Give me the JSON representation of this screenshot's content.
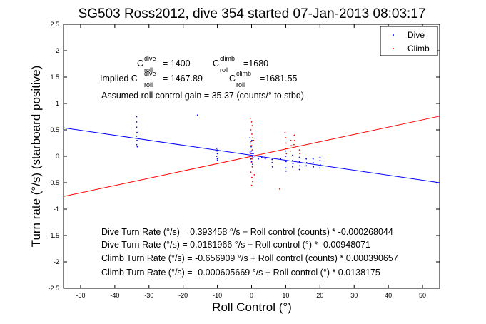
{
  "chart_data": {
    "type": "scatter",
    "title": "SG503 Ross2012, dive 354 started 07-Jan-2013 08:03:17",
    "xlabel": "Roll Control (°)",
    "ylabel": "Turn rate (°/s) (starboard positive)",
    "xlim": [
      -55,
      55
    ],
    "ylim": [
      -2.5,
      2.5
    ],
    "xticks": [
      -50,
      -40,
      -30,
      -20,
      -10,
      0,
      10,
      20,
      30,
      40,
      50
    ],
    "yticks": [
      -2.5,
      -2,
      -1.5,
      -1,
      -0.5,
      0,
      0.5,
      1,
      1.5,
      2,
      2.5
    ],
    "ytick_labels": [
      "-2.5",
      "-2",
      "-1.5",
      "-1",
      "-0.5",
      "0",
      "0.5",
      "1",
      "1.5",
      "2",
      "2.5"
    ],
    "grid": false,
    "legend_position": "top-right",
    "series": [
      {
        "name": "Dive",
        "color": "#0000ff",
        "marker": "dot",
        "points": [
          [
            -33.6,
            0.75
          ],
          [
            -33.6,
            0.65
          ],
          [
            -33.6,
            0.55
          ],
          [
            -33.5,
            0.45
          ],
          [
            -33.6,
            0.38
          ],
          [
            -33.5,
            0.3
          ],
          [
            -33.6,
            0.22
          ],
          [
            -33.4,
            0.18
          ],
          [
            -15.8,
            0.78
          ],
          [
            -10.2,
            0.15
          ],
          [
            -10.1,
            0.1
          ],
          [
            -10.0,
            0.05
          ],
          [
            -10.2,
            0.0
          ],
          [
            -10.0,
            -0.05
          ],
          [
            -10.1,
            0.12
          ],
          [
            -10.0,
            -0.08
          ],
          [
            -0.5,
            0.35
          ],
          [
            -0.3,
            0.25
          ],
          [
            -0.1,
            0.18
          ],
          [
            0.0,
            0.1
          ],
          [
            0.1,
            0.05
          ],
          [
            0.2,
            0.0
          ],
          [
            -0.2,
            -0.05
          ],
          [
            0.0,
            -0.1
          ],
          [
            0.3,
            -0.15
          ],
          [
            -0.1,
            0.2
          ],
          [
            0.1,
            0.3
          ],
          [
            -0.4,
            0.08
          ],
          [
            0.4,
            -0.02
          ],
          [
            0.5,
            0.05
          ],
          [
            1.0,
            0.0
          ],
          [
            2.0,
            -0.05
          ],
          [
            3.0,
            -0.02
          ],
          [
            4.0,
            -0.05
          ],
          [
            6.0,
            -0.12
          ],
          [
            6.1,
            -0.2
          ],
          [
            6.0,
            -0.06
          ],
          [
            8.5,
            -0.05
          ],
          [
            10.0,
            0.1
          ],
          [
            10.0,
            0.0
          ],
          [
            10.1,
            -0.1
          ],
          [
            10.0,
            -0.22
          ],
          [
            10.1,
            -0.28
          ],
          [
            12.0,
            0.02
          ],
          [
            12.0,
            -0.08
          ],
          [
            12.1,
            -0.14
          ],
          [
            12.0,
            -0.2
          ],
          [
            14.0,
            -0.02
          ],
          [
            14.0,
            -0.1
          ],
          [
            14.1,
            -0.18
          ],
          [
            14.0,
            -0.25
          ],
          [
            16.0,
            -0.05
          ],
          [
            16.1,
            -0.12
          ],
          [
            16.0,
            -0.18
          ],
          [
            18.0,
            -0.05
          ],
          [
            18.0,
            -0.12
          ],
          [
            18.1,
            -0.2
          ],
          [
            20.0,
            -0.02
          ],
          [
            20.0,
            -0.08
          ],
          [
            20.1,
            -0.16
          ],
          [
            20.0,
            -0.22
          ]
        ]
      },
      {
        "name": "Climb",
        "color": "#ff0000",
        "marker": "dot",
        "points": [
          [
            -0.3,
            0.72
          ],
          [
            0.0,
            0.65
          ],
          [
            0.2,
            0.58
          ],
          [
            -0.2,
            0.5
          ],
          [
            0.1,
            0.42
          ],
          [
            0.3,
            0.35
          ],
          [
            -0.1,
            0.28
          ],
          [
            0.0,
            0.2
          ],
          [
            0.2,
            0.12
          ],
          [
            -0.3,
            0.05
          ],
          [
            0.1,
            -0.05
          ],
          [
            0.0,
            -0.12
          ],
          [
            0.2,
            -0.2
          ],
          [
            -0.2,
            -0.3
          ],
          [
            0.1,
            -0.4
          ],
          [
            0.3,
            -0.48
          ],
          [
            0.0,
            -0.55
          ],
          [
            0.6,
            0.3
          ],
          [
            0.8,
            -0.35
          ],
          [
            8.2,
            -0.62
          ],
          [
            9.8,
            0.45
          ],
          [
            10.0,
            0.35
          ],
          [
            10.1,
            0.25
          ],
          [
            10.0,
            0.15
          ],
          [
            10.2,
            0.05
          ],
          [
            11.5,
            0.3
          ],
          [
            11.6,
            0.2
          ],
          [
            11.4,
            0.1
          ],
          [
            12.5,
            0.4
          ],
          [
            12.6,
            0.3
          ],
          [
            12.4,
            0.22
          ],
          [
            14.0,
            0.12
          ],
          [
            14.1,
            0.05
          ]
        ]
      }
    ],
    "fit_lines": [
      {
        "series": "Dive",
        "color": "#0000ff",
        "x": [
          -55,
          55
        ],
        "y": [
          0.5392,
          -0.4997
        ]
      },
      {
        "series": "Climb",
        "color": "#ff0000",
        "x": [
          -55,
          55
        ],
        "y": [
          -0.7606,
          0.7594
        ]
      }
    ],
    "annotations": {
      "c_dive_main": "C",
      "c_dive_sup": "dive",
      "c_dive_sub": "roll",
      "c_dive_value": "= 1400",
      "c_climb_main": "C",
      "c_climb_sup": "climb",
      "c_climb_sub": "roll",
      "c_climb_value": "=1680",
      "implied_prefix": "Implied C",
      "implied_dive_sup": "dive",
      "implied_dive_sub": "roll",
      "implied_dive_value": "= 1467.89",
      "implied_climb_main": "C",
      "implied_climb_sup": "climb",
      "implied_climb_sub": "roll",
      "implied_climb_value": "=1681.55",
      "gain": "Assumed roll control gain = 35.37 (counts/° to stbd)",
      "fit1": "Dive Turn Rate (°/s) = 0.393458 °/s + Roll control (counts) * -0.000268044",
      "fit2": "Dive Turn Rate (°/s) = 0.0181966 °/s + Roll control (°) * -0.00948071",
      "fit3": "Climb Turn Rate (°/s) = -0.656909 °/s + Roll control (counts) * 0.000390657",
      "fit4": "Climb Turn Rate (°/s) = -0.000605669 °/s + Roll control (°) * 0.0138175"
    }
  }
}
